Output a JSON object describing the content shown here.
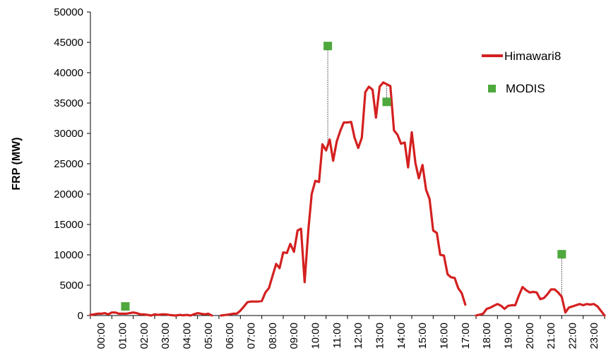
{
  "chart_data": {
    "type": "line",
    "title": "",
    "xlabel": "",
    "ylabel": "FRP (MW)",
    "ylim": [
      0,
      50000
    ],
    "xlim": [
      0,
      24
    ],
    "y_ticks": [
      0,
      5000,
      10000,
      15000,
      20000,
      25000,
      30000,
      35000,
      40000,
      45000,
      50000
    ],
    "x_tick_labels": [
      "00:00",
      "01:00",
      "02:00",
      "03:00",
      "04:00",
      "05:00",
      "06:00",
      "07:00",
      "08:00",
      "09:00",
      "10:00",
      "11:00",
      "12:00",
      "13:00",
      "14:00",
      "15:00",
      "16:00",
      "17:00",
      "18:00",
      "19:00",
      "20:00",
      "21:00",
      "22:00",
      "23:00"
    ],
    "grid": false,
    "legend_position": "top-right",
    "colors": {
      "himawari": "#d42020",
      "modis": "#4ea83c",
      "axis": "#000000",
      "dropline": "#333333"
    },
    "series": [
      {
        "name": "Himawari8",
        "style": "line",
        "segments": [
          [
            [
              0.0,
              100
            ],
            [
              0.17,
              200
            ],
            [
              0.33,
              300
            ],
            [
              0.5,
              300
            ],
            [
              0.67,
              400
            ],
            [
              0.83,
              200
            ],
            [
              1.0,
              500
            ],
            [
              1.17,
              500
            ],
            [
              1.33,
              300
            ],
            [
              1.5,
              300
            ],
            [
              1.67,
              300
            ],
            [
              1.83,
              400
            ],
            [
              2.0,
              500
            ],
            [
              2.17,
              400
            ],
            [
              2.33,
              200
            ],
            [
              2.5,
              200
            ],
            [
              2.67,
              100
            ],
            [
              2.83,
              0
            ],
            [
              3.0,
              200
            ],
            [
              3.17,
              100
            ],
            [
              3.33,
              200
            ],
            [
              3.5,
              200
            ],
            [
              3.67,
              100
            ],
            [
              3.83,
              50
            ],
            [
              4.0,
              0
            ],
            [
              4.17,
              100
            ],
            [
              4.33,
              50
            ],
            [
              4.5,
              100
            ],
            [
              4.67,
              0
            ],
            [
              4.83,
              200
            ],
            [
              5.0,
              400
            ],
            [
              5.17,
              300
            ],
            [
              5.33,
              200
            ],
            [
              5.5,
              300
            ],
            [
              5.67,
              0
            ]
          ],
          [
            [
              6.1,
              0
            ],
            [
              6.33,
              100
            ],
            [
              6.5,
              200
            ],
            [
              6.67,
              300
            ],
            [
              6.83,
              300
            ],
            [
              7.0,
              800
            ],
            [
              7.17,
              1500
            ],
            [
              7.33,
              2200
            ],
            [
              7.5,
              2300
            ],
            [
              7.67,
              2300
            ],
            [
              7.83,
              2300
            ],
            [
              8.0,
              2400
            ],
            [
              8.17,
              3800
            ],
            [
              8.33,
              4500
            ],
            [
              8.5,
              6500
            ],
            [
              8.67,
              8500
            ],
            [
              8.83,
              7800
            ],
            [
              9.0,
              10400
            ],
            [
              9.17,
              10300
            ],
            [
              9.33,
              11800
            ],
            [
              9.5,
              10500
            ],
            [
              9.67,
              14000
            ],
            [
              9.83,
              14300
            ],
            [
              10.0,
              5500
            ],
            [
              10.17,
              14000
            ],
            [
              10.33,
              20000
            ],
            [
              10.5,
              22200
            ],
            [
              10.67,
              22000
            ],
            [
              10.83,
              28200
            ],
            [
              11.0,
              27200
            ],
            [
              11.17,
              29000
            ],
            [
              11.33,
              25500
            ],
            [
              11.5,
              28700
            ],
            [
              11.67,
              30500
            ],
            [
              11.83,
              31800
            ],
            [
              12.0,
              31800
            ],
            [
              12.17,
              31900
            ],
            [
              12.33,
              29300
            ],
            [
              12.5,
              27600
            ],
            [
              12.67,
              29300
            ],
            [
              12.83,
              36800
            ],
            [
              13.0,
              37700
            ],
            [
              13.17,
              37200
            ],
            [
              13.33,
              32600
            ],
            [
              13.5,
              37700
            ],
            [
              13.67,
              38400
            ],
            [
              13.83,
              38100
            ],
            [
              14.0,
              37800
            ],
            [
              14.17,
              30500
            ],
            [
              14.33,
              29800
            ],
            [
              14.5,
              28300
            ],
            [
              14.67,
              28500
            ],
            [
              14.83,
              24400
            ],
            [
              15.0,
              30200
            ],
            [
              15.17,
              25100
            ],
            [
              15.33,
              22600
            ],
            [
              15.5,
              24800
            ],
            [
              15.67,
              20700
            ],
            [
              15.83,
              19200
            ],
            [
              16.0,
              14000
            ],
            [
              16.17,
              13600
            ],
            [
              16.33,
              10000
            ],
            [
              16.5,
              9900
            ],
            [
              16.67,
              6800
            ],
            [
              16.83,
              6300
            ],
            [
              17.0,
              6200
            ],
            [
              17.17,
              4500
            ],
            [
              17.33,
              3700
            ],
            [
              17.5,
              1800
            ]
          ],
          [
            [
              18.0,
              0
            ],
            [
              18.33,
              300
            ],
            [
              18.5,
              1100
            ],
            [
              18.67,
              1300
            ],
            [
              18.83,
              1600
            ],
            [
              19.0,
              1900
            ],
            [
              19.17,
              1600
            ],
            [
              19.33,
              1100
            ],
            [
              19.5,
              1600
            ],
            [
              19.67,
              1700
            ],
            [
              19.83,
              1700
            ],
            [
              20.0,
              3300
            ],
            [
              20.17,
              4700
            ],
            [
              20.33,
              4200
            ],
            [
              20.5,
              3800
            ],
            [
              20.67,
              3900
            ],
            [
              20.83,
              3800
            ],
            [
              21.0,
              2700
            ],
            [
              21.17,
              2900
            ],
            [
              21.33,
              3500
            ],
            [
              21.5,
              4300
            ],
            [
              21.67,
              4300
            ],
            [
              21.83,
              3800
            ],
            [
              22.0,
              3100
            ],
            [
              22.17,
              500
            ],
            [
              22.33,
              1300
            ],
            [
              22.5,
              1500
            ],
            [
              22.67,
              1700
            ],
            [
              22.83,
              1900
            ],
            [
              23.0,
              1700
            ],
            [
              23.17,
              1900
            ],
            [
              23.33,
              1800
            ],
            [
              23.5,
              1900
            ],
            [
              23.67,
              1500
            ],
            [
              24.0,
              0
            ]
          ]
        ]
      },
      {
        "name": "MODIS",
        "style": "marker",
        "points": [
          {
            "x": 1.63,
            "y": 1500,
            "dropline_to": null
          },
          {
            "x": 11.08,
            "y": 44400,
            "dropline_to": 28000
          },
          {
            "x": 13.83,
            "y": 35200,
            "dropline_to": 38000
          },
          {
            "x": 22.0,
            "y": 10100,
            "dropline_to": 3300
          }
        ]
      }
    ]
  }
}
